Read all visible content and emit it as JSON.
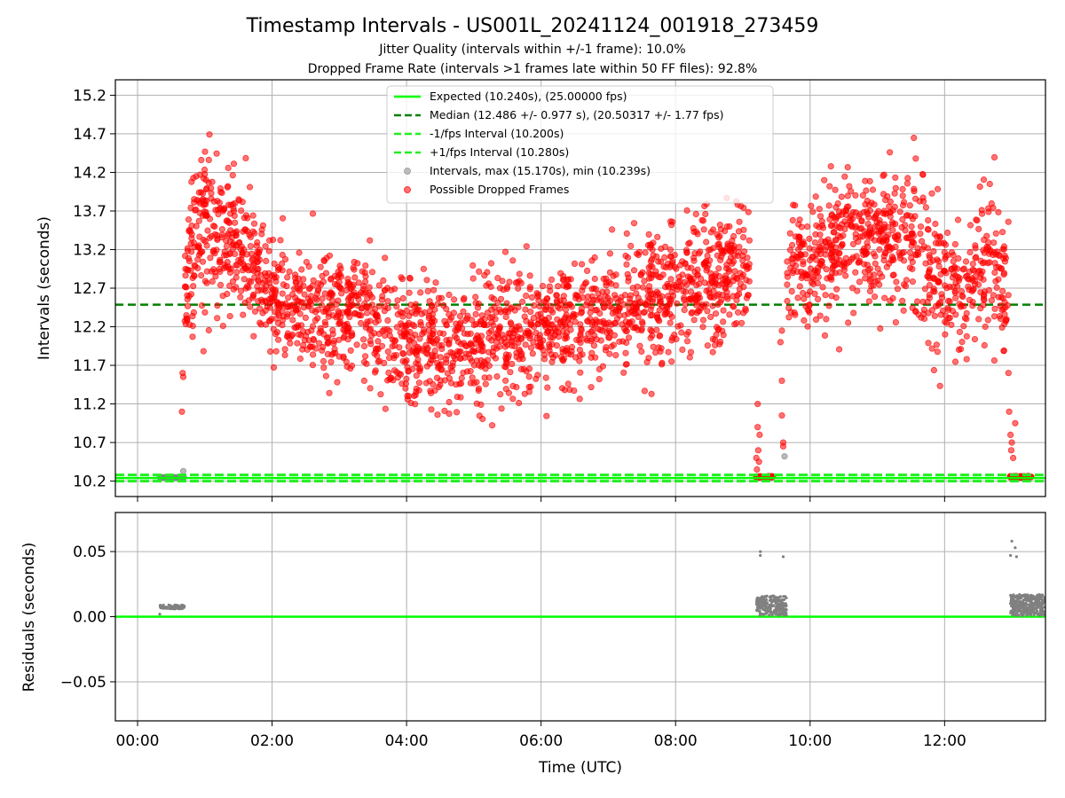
{
  "title": "Timestamp Intervals - US001L_20241124_001918_273459",
  "subtitle_1": "Jitter Quality (intervals within +/-1 frame): 10.0%",
  "subtitle_2": "Dropped Frame Rate (intervals >1 frames late within 50 FF files): 92.8%",
  "colors": {
    "expected": "#00ff00",
    "median": "#008000",
    "limits": "#22ee22",
    "dropped": "#ff0000",
    "intervals": "#808080",
    "grid": "#b0b0b0"
  },
  "chart_data": [
    {
      "type": "scatter",
      "ylabel": "Intervals (seconds)",
      "ylim": [
        10.0,
        15.4
      ],
      "yticks": [
        "10.2",
        "10.7",
        "11.2",
        "11.7",
        "12.2",
        "12.7",
        "13.2",
        "13.7",
        "14.2",
        "14.7",
        "15.2"
      ],
      "xlim_hours": [
        -0.33,
        13.5
      ],
      "grid": true,
      "legend_placement": "top-center",
      "legend": [
        "Expected (10.240s), (25.00000 fps)",
        "Median (12.486 +/- 0.977 s), (20.50317 +/- 1.77 fps)",
        "-1/fps Interval (10.200s)",
        "+1/fps Interval (10.280s)",
        "Intervals, max (15.170s), min (10.239s)",
        "Possible Dropped Frames"
      ],
      "reference_lines": {
        "expected": 10.24,
        "median": 12.486,
        "minus_1_fps": 10.2,
        "plus_1_fps": 10.28
      },
      "intervals_stats": {
        "max": 15.17,
        "min": 10.239
      },
      "dropped_frames_profile": {
        "x_hours": [
          0.7,
          1.0,
          1.5,
          2.0,
          2.5,
          3.0,
          3.5,
          4.0,
          4.5,
          5.0,
          5.5,
          6.0,
          6.5,
          7.0,
          7.5,
          8.0,
          8.5,
          9.0,
          9.15,
          9.7,
          10.0,
          10.5,
          11.0,
          11.5,
          12.0,
          12.3,
          12.7,
          12.95
        ],
        "y_center": [
          12.8,
          13.6,
          13.2,
          12.6,
          12.4,
          12.3,
          12.3,
          12.0,
          11.9,
          12.0,
          12.1,
          12.2,
          12.3,
          12.4,
          12.5,
          12.6,
          12.8,
          12.9,
          12.6,
          13.1,
          13.0,
          13.3,
          13.4,
          13.3,
          12.7,
          12.7,
          13.2,
          12.5
        ],
        "y_spread": [
          0.5,
          0.5,
          0.45,
          0.4,
          0.4,
          0.4,
          0.4,
          0.4,
          0.4,
          0.4,
          0.4,
          0.4,
          0.4,
          0.4,
          0.4,
          0.4,
          0.4,
          0.45,
          0.5,
          0.4,
          0.4,
          0.4,
          0.4,
          0.45,
          0.4,
          0.5,
          0.5,
          0.5
        ]
      }
    },
    {
      "type": "scatter",
      "xlabel": "Time (UTC)",
      "ylabel": "Residuals (seconds)",
      "ylim": [
        -0.08,
        0.08
      ],
      "yticks": [
        "0.05",
        "0.00",
        "−0.05"
      ],
      "xticks": [
        "00:00",
        "02:00",
        "04:00",
        "06:00",
        "08:00",
        "10:00",
        "12:00"
      ],
      "xlim_hours": [
        -0.33,
        13.5
      ],
      "grid": true,
      "zero_line": 0.0,
      "residual_clusters": [
        {
          "x_range_hours": [
            0.33,
            0.7
          ],
          "y_range": [
            0.006,
            0.009
          ]
        },
        {
          "x_range_hours": [
            9.2,
            9.65
          ],
          "y_range": [
            0.001,
            0.016
          ]
        },
        {
          "x_range_hours": [
            12.98,
            13.5
          ],
          "y_range": [
            0.001,
            0.017
          ]
        }
      ],
      "residual_outliers": [
        {
          "x_hours": 9.26,
          "y": 0.05
        },
        {
          "x_hours": 9.26,
          "y": 0.047
        },
        {
          "x_hours": 9.6,
          "y": 0.046
        },
        {
          "x_hours": 13.0,
          "y": 0.058
        },
        {
          "x_hours": 13.05,
          "y": 0.053
        },
        {
          "x_hours": 12.98,
          "y": 0.047
        },
        {
          "x_hours": 13.07,
          "y": 0.046
        },
        {
          "x_hours": 0.33,
          "y": 0.002
        }
      ]
    }
  ]
}
